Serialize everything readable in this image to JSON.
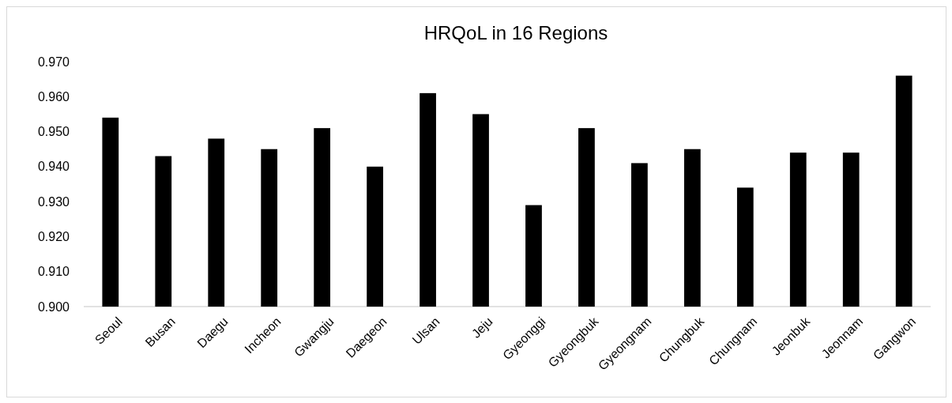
{
  "chart_data": {
    "type": "bar",
    "title": "HRQoL  in 16 Regions",
    "categories": [
      "Seoul",
      "Busan",
      "Daegu",
      "Incheon",
      "Gwangju",
      "Daegeon",
      "Ulsan",
      "Jeju",
      "Gyeonggi",
      "Gyeongbuk",
      "Gyeongnam",
      "Chungbuk",
      "Chungnam",
      "Jeonbuk",
      "Jeonnam",
      "Gangwon"
    ],
    "values": [
      0.954,
      0.943,
      0.948,
      0.945,
      0.951,
      0.94,
      0.961,
      0.955,
      0.929,
      0.951,
      0.941,
      0.945,
      0.934,
      0.944,
      0.944,
      0.966
    ],
    "color": "#000000",
    "ylim": [
      0.9,
      0.97
    ],
    "yticks": [
      {
        "value": 0.9,
        "label": "0.900"
      },
      {
        "value": 0.91,
        "label": "0.910"
      },
      {
        "value": 0.92,
        "label": "0.920"
      },
      {
        "value": 0.93,
        "label": "0.930"
      },
      {
        "value": 0.94,
        "label": "0.940"
      },
      {
        "value": 0.95,
        "label": "0.950"
      },
      {
        "value": 0.96,
        "label": "0.960"
      },
      {
        "value": 0.97,
        "label": "0.970"
      }
    ],
    "grid": false
  }
}
